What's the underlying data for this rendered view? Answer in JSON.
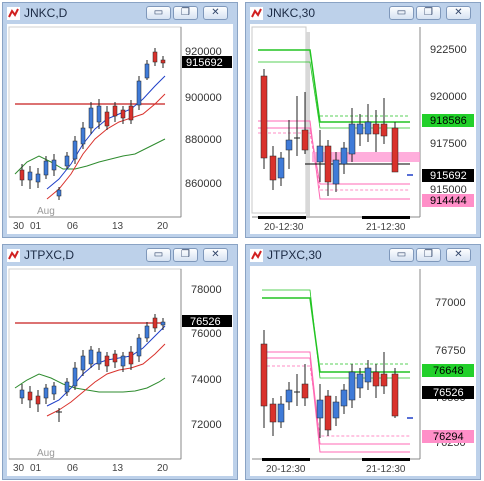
{
  "windows": [
    {
      "key": "jnkc_d",
      "title": "JNKC,D",
      "buttons": {
        "minimize": "▭",
        "restore": "❐",
        "close": "✕"
      },
      "axis": {
        "ticks": [
          "920000",
          "900000",
          "880000",
          "860000"
        ]
      },
      "price_tags": [
        {
          "label": "915692",
          "kind": "last"
        }
      ],
      "date_labels": [
        "30",
        "01",
        "06",
        "13",
        "20"
      ],
      "month_label": "Aug"
    },
    {
      "key": "jnkc_30",
      "title": "JNKC,30",
      "buttons": {
        "minimize": "▭",
        "restore": "❐",
        "close": "✕"
      },
      "axis": {
        "ticks": [
          "922500",
          "920000",
          "917500",
          "915000"
        ]
      },
      "price_tags": [
        {
          "label": "918586",
          "kind": "green"
        },
        {
          "label": "915692",
          "kind": "last"
        },
        {
          "label": "914444",
          "kind": "pink"
        }
      ],
      "date_labels": [
        "20-12:30",
        "21-12:30"
      ]
    },
    {
      "key": "jtpxc_d",
      "title": "JTPXC,D",
      "buttons": {
        "minimize": "▭",
        "restore": "❐",
        "close": "✕"
      },
      "axis": {
        "ticks": [
          "78000",
          "76000",
          "74000",
          "72000"
        ]
      },
      "price_tags": [
        {
          "label": "76526",
          "kind": "last"
        }
      ],
      "date_labels": [
        "30",
        "01",
        "06",
        "13",
        "20"
      ],
      "month_label": "Aug"
    },
    {
      "key": "jtpxc_30",
      "title": "JTPXC,30",
      "buttons": {
        "minimize": "▭",
        "restore": "❐",
        "close": "✕"
      },
      "axis": {
        "ticks": [
          "77000",
          "76750",
          "76500",
          "76250"
        ]
      },
      "price_tags": [
        {
          "label": "76648",
          "kind": "green"
        },
        {
          "label": "76526",
          "kind": "last"
        },
        {
          "label": "76294",
          "kind": "pink"
        }
      ],
      "date_labels": [
        "20-12:30",
        "21-12:30"
      ]
    }
  ],
  "colors": {
    "up": "#3f7bd8",
    "down": "#d9322c",
    "ma_fast": "#1f3fc8",
    "ma_mid": "#d9322c",
    "ma_slow": "#2e8b2e",
    "signal_green": "#22c422",
    "signal_pink": "#ff69b4",
    "tag_last": "#000000",
    "tag_green": "#22d02a",
    "tag_pink": "#ff8fc8"
  }
}
